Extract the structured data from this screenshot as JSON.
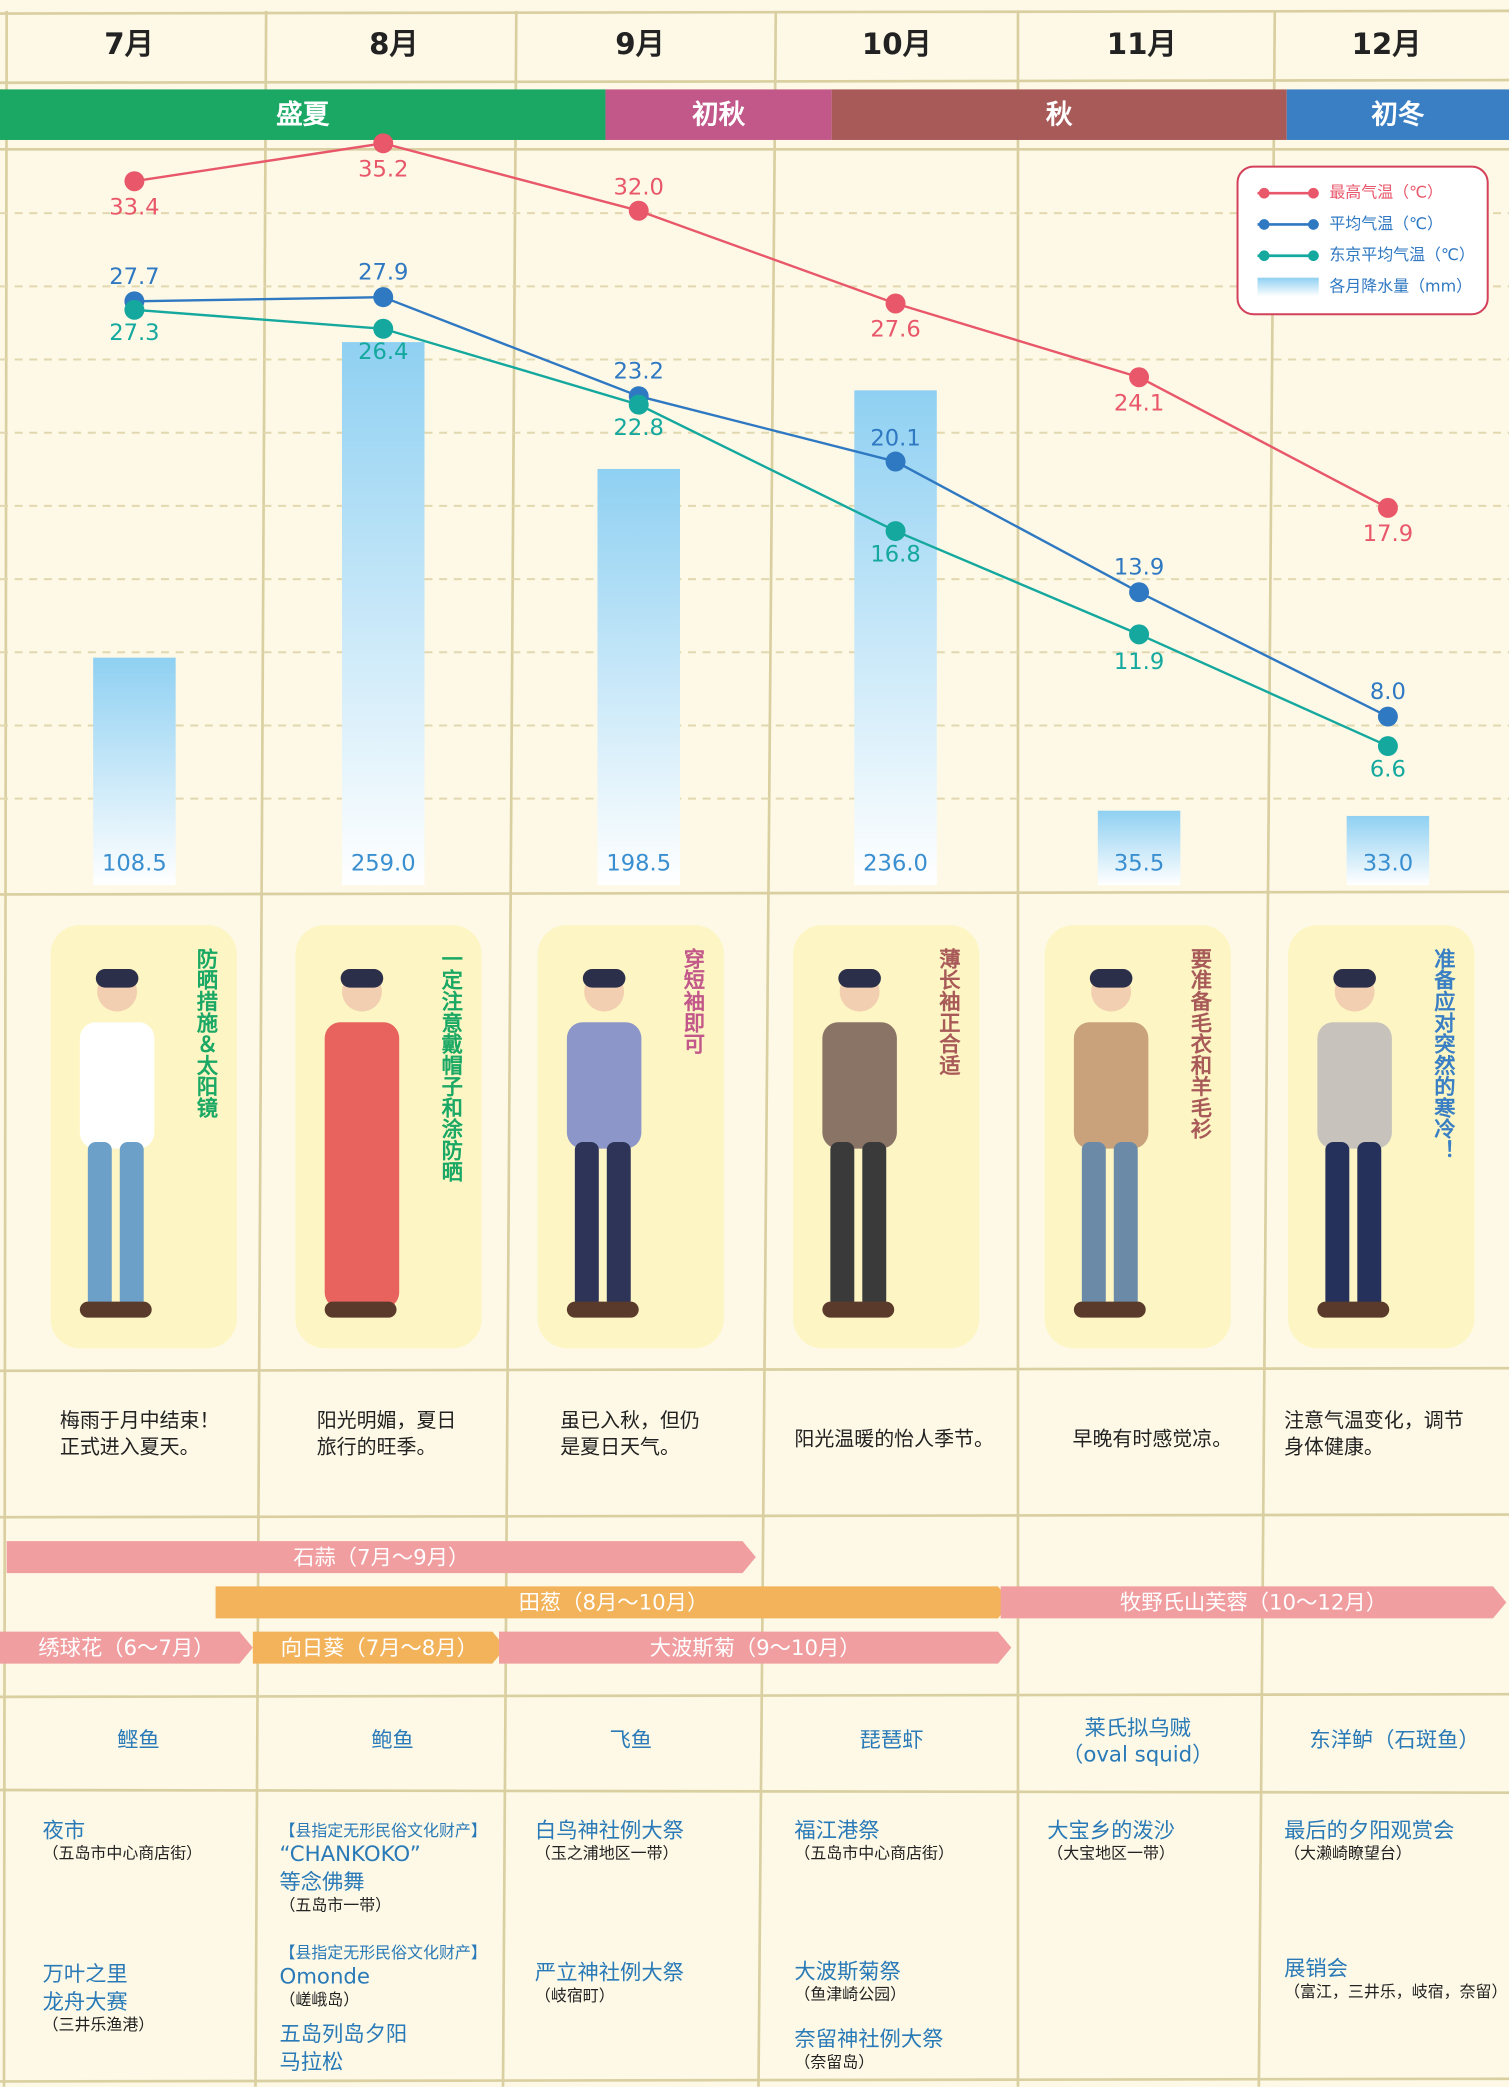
{
  "chart_data": {
    "type": "combo",
    "categories": [
      "7月",
      "8月",
      "9月",
      "10月",
      "11月",
      "12月"
    ],
    "series": [
      {
        "name": "最高气温（℃）",
        "color": "#e8576a",
        "values": [
          33.4,
          35.2,
          32.0,
          27.6,
          24.1,
          17.9
        ],
        "value_labels": [
          "33.4",
          "35.2",
          "32.0",
          "27.6",
          "24.1",
          "17.9"
        ]
      },
      {
        "name": "平均气温（℃）",
        "color": "#2f78c2",
        "values": [
          27.7,
          27.9,
          23.2,
          20.1,
          13.9,
          8.0
        ],
        "value_labels": [
          "27.7",
          "27.9",
          "23.2",
          "20.1",
          "13.9",
          "8.0"
        ]
      },
      {
        "name": "东京平均气温（℃）",
        "color": "#14a89e",
        "values": [
          27.3,
          26.4,
          22.8,
          16.8,
          11.9,
          6.6
        ],
        "value_labels": [
          "27.3",
          "26.4",
          "22.8",
          "16.8",
          "11.9",
          "6.6"
        ]
      },
      {
        "name": "各月降水量（mm）",
        "color": "#8fd0f2",
        "axis": "y2",
        "values": [
          108.5,
          259.0,
          198.5,
          236.0,
          35.5,
          33.0
        ],
        "value_labels": [
          "108.5",
          "259.0",
          "198.5",
          "236.0",
          "35.5",
          "33.0"
        ]
      }
    ],
    "ylim": [
      0,
      37
    ],
    "y2lim": [
      0,
      370
    ]
  },
  "seasons": [
    {
      "label": "盛夏",
      "color": "#1aa864"
    },
    {
      "label": "初秋",
      "color": "#c2588a"
    },
    {
      "label": "秋",
      "color": "#a85a58"
    },
    {
      "label": "初冬",
      "color": "#3a7fc4"
    }
  ],
  "outfits": [
    {
      "tip": "防晒措施＆太阳镜",
      "color": "#1aa864"
    },
    {
      "tip": "一定注意戴帽子和涂防晒",
      "color": "#1aa864"
    },
    {
      "tip": "穿短袖即可",
      "color": "#c2588a"
    },
    {
      "tip": "薄长袖正合适",
      "color": "#a85a58"
    },
    {
      "tip": "要准备毛衣和羊毛衫",
      "color": "#a85a58"
    },
    {
      "tip": "准备应对突然的寒冷！",
      "color": "#3a7fc4"
    }
  ],
  "descriptions": [
    [
      "梅雨于月中结束！",
      "正式进入夏天。"
    ],
    [
      "阳光明媚，夏日",
      "旅行的旺季。"
    ],
    [
      "虽已入秋，但仍",
      "是夏日天气。"
    ],
    [
      "阳光温暖的怡人季节。"
    ],
    [
      "早晚有时感觉凉。"
    ],
    [
      "注意气温变化，调节",
      "身体健康。"
    ]
  ],
  "flowers": [
    "石蒜（7月～9月）",
    "田葱（8月～10月）",
    "牧野氏山芙蓉（10～12月）",
    "绣球花（6～7月）",
    "向日葵（7月～8月）",
    "大波斯菊（9～10月）"
  ],
  "fish": [
    [
      "鲣鱼"
    ],
    [
      "鲍鱼"
    ],
    [
      "飞鱼"
    ],
    [
      "琵琶虾"
    ],
    [
      "莱氏拟乌贼",
      "（oval squid）"
    ],
    [
      "东洋鲈（石斑鱼）"
    ]
  ],
  "events": [
    [
      {
        "name": [
          "夜市"
        ],
        "place": "（五岛市中心商店街）"
      },
      {
        "name": [
          "万叶之里",
          "龙舟大赛"
        ],
        "place": "（三井乐渔港）"
      }
    ],
    [
      {
        "tag": "【县指定无形民俗文化财产】",
        "name": [
          "“CHANKOKO”",
          "等念佛舞"
        ],
        "place": "（五岛市一带）"
      },
      {
        "tag": "【县指定无形民俗文化财产】",
        "name": [
          "Omonde"
        ],
        "place": "（嵯峨岛）"
      },
      {
        "name": [
          "五岛列岛夕阳",
          "马拉松"
        ]
      }
    ],
    [
      {
        "name": [
          "白鸟神社例大祭"
        ],
        "place": "（玉之浦地区一带）"
      },
      {
        "name": [
          "严立神社例大祭"
        ],
        "place": "（岐宿町）"
      }
    ],
    [
      {
        "name": [
          "福江港祭"
        ],
        "place": "（五岛市中心商店街）"
      },
      {
        "name": [
          "大波斯菊祭"
        ],
        "place": "（鱼津崎公园）"
      },
      {
        "name": [
          "奈留神社例大祭"
        ],
        "place": "（奈留岛）"
      }
    ],
    [
      {
        "name": [
          "大宝乡的泼沙"
        ],
        "place": "（大宝地区一带）"
      }
    ],
    [
      {
        "name": [
          "最后的夕阳观赏会"
        ],
        "place": "（大濑崎瞭望台）"
      },
      {
        "name": [
          "展销会"
        ],
        "place": "（富江，三井乐，岐宿，奈留）"
      }
    ]
  ]
}
